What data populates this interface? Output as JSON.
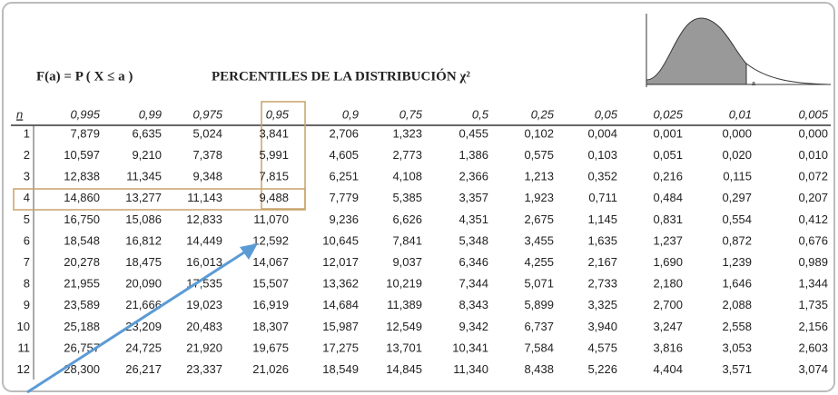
{
  "header": {
    "formula": "F(a) = P ( X ≤ a )",
    "title": "PERCENTILES DE LA DISTRIBUCIÓN χ²",
    "graph_label": "a"
  },
  "table": {
    "columns": [
      "n",
      "0,995",
      "0,99",
      "0,975",
      "0,95",
      "0,9",
      "0,75",
      "0,5",
      "0,25",
      "0,05",
      "0,025",
      "0,01",
      "0,005"
    ],
    "rows": [
      [
        "1",
        "7,879",
        "6,635",
        "5,024",
        "3,841",
        "2,706",
        "1,323",
        "0,455",
        "0,102",
        "0,004",
        "0,001",
        "0,000",
        "0,000"
      ],
      [
        "2",
        "10,597",
        "9,210",
        "7,378",
        "5,991",
        "4,605",
        "2,773",
        "1,386",
        "0,575",
        "0,103",
        "0,051",
        "0,020",
        "0,010"
      ],
      [
        "3",
        "12,838",
        "11,345",
        "9,348",
        "7,815",
        "6,251",
        "4,108",
        "2,366",
        "1,213",
        "0,352",
        "0,216",
        "0,115",
        "0,072"
      ],
      [
        "4",
        "14,860",
        "13,277",
        "11,143",
        "9,488",
        "7,779",
        "5,385",
        "3,357",
        "1,923",
        "0,711",
        "0,484",
        "0,297",
        "0,207"
      ],
      [
        "5",
        "16,750",
        "15,086",
        "12,833",
        "11,070",
        "9,236",
        "6,626",
        "4,351",
        "2,675",
        "1,145",
        "0,831",
        "0,554",
        "0,412"
      ],
      [
        "6",
        "18,548",
        "16,812",
        "14,449",
        "12,592",
        "10,645",
        "7,841",
        "5,348",
        "3,455",
        "1,635",
        "1,237",
        "0,872",
        "0,676"
      ],
      [
        "7",
        "20,278",
        "18,475",
        "16,013",
        "14,067",
        "12,017",
        "9,037",
        "6,346",
        "4,255",
        "2,167",
        "1,690",
        "1,239",
        "0,989"
      ],
      [
        "8",
        "21,955",
        "20,090",
        "17,535",
        "15,507",
        "13,362",
        "10,219",
        "7,344",
        "5,071",
        "2,733",
        "2,180",
        "1,646",
        "1,344"
      ],
      [
        "9",
        "23,589",
        "21,666",
        "19,023",
        "16,919",
        "14,684",
        "11,389",
        "8,343",
        "5,899",
        "3,325",
        "2,700",
        "2,088",
        "1,735"
      ],
      [
        "10",
        "25,188",
        "23,209",
        "20,483",
        "18,307",
        "15,987",
        "12,549",
        "9,342",
        "6,737",
        "3,940",
        "3,247",
        "2,558",
        "2,156"
      ],
      [
        "11",
        "26,757",
        "24,725",
        "21,920",
        "19,675",
        "17,275",
        "13,701",
        "10,341",
        "7,584",
        "4,575",
        "3,816",
        "3,053",
        "2,603"
      ],
      [
        "12",
        "28,300",
        "26,217",
        "23,337",
        "21,026",
        "18,549",
        "14,845",
        "11,340",
        "8,438",
        "5,226",
        "4,404",
        "3,571",
        "3,074"
      ]
    ]
  }
}
